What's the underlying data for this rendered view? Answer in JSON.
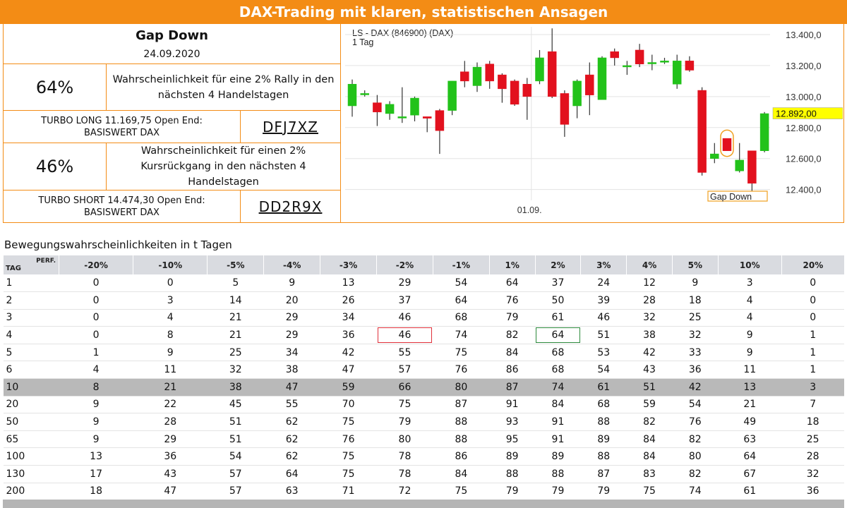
{
  "banner": "DAX-Trading mit klaren, statistischen Ansagen",
  "signal": {
    "title": "Gap Down",
    "date": "24.09.2020"
  },
  "rally": {
    "pct": "64%",
    "text": "Wahrscheinlichkeit für eine 2% Rally in den nächsten 4 Handelstagen"
  },
  "turbo_long": {
    "desc_line1": "TURBO LONG 11.169,75 Open End:",
    "desc_line2": "BASISWERT DAX",
    "code": "DFJ7XZ"
  },
  "decline": {
    "pct": "46%",
    "text": "Wahrscheinlichkeit für einen 2% Kursrückgang in den nächsten 4 Handelstagen"
  },
  "turbo_short": {
    "desc_line1": "TURBO SHORT 14.474,30 Open End:",
    "desc_line2": "BASISWERT DAX",
    "code": "DD2R9X"
  },
  "chart_data": {
    "type": "candlestick",
    "title": "LS - DAX (846900) (DAX)",
    "subtitle": "1 Tag",
    "ylim": [
      12330,
      13450
    ],
    "yticks": [
      "13.400,0",
      "13.200,0",
      "13.000,0",
      "12.800,0",
      "12.600,0",
      "12.400,0"
    ],
    "ytick_values": [
      13400,
      13200,
      13000,
      12800,
      12600,
      12400
    ],
    "x_label": "01.09.",
    "x_label_index": 14,
    "last_price_label": "12.892,00",
    "last_price": 12892,
    "annotation": "Gap Down",
    "annotation_index": 30,
    "colors": {
      "up": "#22c21a",
      "down": "#e2111e",
      "wick": "#333333",
      "label_bg": "#ffff00",
      "annotation": "#f0a020"
    },
    "candles": [
      {
        "o": 12940,
        "h": 13110,
        "l": 12870,
        "c": 13080
      },
      {
        "o": 13020,
        "h": 13040,
        "l": 13000,
        "c": 13020
      },
      {
        "o": 12960,
        "h": 13010,
        "l": 12810,
        "c": 12900
      },
      {
        "o": 12890,
        "h": 12970,
        "l": 12850,
        "c": 12950
      },
      {
        "o": 12870,
        "h": 13060,
        "l": 12830,
        "c": 12870
      },
      {
        "o": 12880,
        "h": 13000,
        "l": 12840,
        "c": 12990
      },
      {
        "o": 12870,
        "h": 12870,
        "l": 12770,
        "c": 12860
      },
      {
        "o": 12910,
        "h": 12920,
        "l": 12630,
        "c": 12780
      },
      {
        "o": 12910,
        "h": 13100,
        "l": 12880,
        "c": 13100
      },
      {
        "o": 13160,
        "h": 13230,
        "l": 13060,
        "c": 13100
      },
      {
        "o": 13070,
        "h": 13220,
        "l": 13030,
        "c": 13190
      },
      {
        "o": 13210,
        "h": 13230,
        "l": 13050,
        "c": 13100
      },
      {
        "o": 13140,
        "h": 13150,
        "l": 12960,
        "c": 13050
      },
      {
        "o": 13100,
        "h": 13110,
        "l": 12940,
        "c": 12950
      },
      {
        "o": 13080,
        "h": 13120,
        "l": 12850,
        "c": 13000
      },
      {
        "o": 13100,
        "h": 13300,
        "l": 13080,
        "c": 13250
      },
      {
        "o": 13290,
        "h": 13440,
        "l": 12990,
        "c": 13000
      },
      {
        "o": 13020,
        "h": 13040,
        "l": 12740,
        "c": 12820
      },
      {
        "o": 12940,
        "h": 13110,
        "l": 12860,
        "c": 13100
      },
      {
        "o": 13140,
        "h": 13220,
        "l": 12880,
        "c": 13010
      },
      {
        "o": 12980,
        "h": 13260,
        "l": 12980,
        "c": 13250
      },
      {
        "o": 13290,
        "h": 13310,
        "l": 13200,
        "c": 13250
      },
      {
        "o": 13200,
        "h": 13230,
        "l": 13140,
        "c": 13200
      },
      {
        "o": 13300,
        "h": 13340,
        "l": 13190,
        "c": 13210
      },
      {
        "o": 13220,
        "h": 13270,
        "l": 13170,
        "c": 13220
      },
      {
        "o": 13230,
        "h": 13250,
        "l": 13210,
        "c": 13230
      },
      {
        "o": 13080,
        "h": 13270,
        "l": 13050,
        "c": 13230
      },
      {
        "o": 13230,
        "h": 13260,
        "l": 13160,
        "c": 13170
      },
      {
        "o": 13040,
        "h": 13060,
        "l": 12490,
        "c": 12510
      },
      {
        "o": 12600,
        "h": 12700,
        "l": 12570,
        "c": 12630
      },
      {
        "o": 12730,
        "h": 12720,
        "l": 12650,
        "c": 12650
      },
      {
        "o": 12520,
        "h": 12700,
        "l": 12510,
        "c": 12590
      },
      {
        "o": 12650,
        "h": 12640,
        "l": 12390,
        "c": 12440
      },
      {
        "o": 12650,
        "h": 12900,
        "l": 12640,
        "c": 12890
      }
    ]
  },
  "table": {
    "title": "Bewegungswahrscheinlichkeiten in t Tagen",
    "corner_perf": "PERF.",
    "corner_tag": "TAG",
    "headers": [
      "-20%",
      "-10%",
      "-5%",
      "-4%",
      "-3%",
      "-2%",
      "-1%",
      "1%",
      "2%",
      "3%",
      "4%",
      "5%",
      "10%",
      "20%"
    ],
    "rows": [
      [
        "1",
        "0",
        "0",
        "5",
        "9",
        "13",
        "29",
        "54",
        "64",
        "37",
        "24",
        "12",
        "9",
        "3",
        "0"
      ],
      [
        "2",
        "0",
        "3",
        "14",
        "20",
        "26",
        "37",
        "64",
        "76",
        "50",
        "39",
        "28",
        "18",
        "4",
        "0"
      ],
      [
        "3",
        "0",
        "4",
        "21",
        "29",
        "34",
        "46",
        "68",
        "79",
        "61",
        "46",
        "32",
        "25",
        "4",
        "0"
      ],
      [
        "4",
        "0",
        "8",
        "21",
        "29",
        "36",
        "46",
        "74",
        "82",
        "64",
        "51",
        "38",
        "32",
        "9",
        "1"
      ],
      [
        "5",
        "1",
        "9",
        "25",
        "34",
        "42",
        "55",
        "75",
        "84",
        "68",
        "53",
        "42",
        "33",
        "9",
        "1"
      ],
      [
        "6",
        "4",
        "11",
        "32",
        "38",
        "47",
        "57",
        "76",
        "86",
        "68",
        "54",
        "43",
        "36",
        "11",
        "1"
      ],
      [
        "10",
        "8",
        "21",
        "38",
        "47",
        "59",
        "66",
        "80",
        "87",
        "74",
        "61",
        "51",
        "42",
        "13",
        "3"
      ],
      [
        "20",
        "9",
        "22",
        "45",
        "55",
        "70",
        "75",
        "87",
        "91",
        "84",
        "68",
        "59",
        "54",
        "21",
        "7"
      ],
      [
        "50",
        "9",
        "28",
        "51",
        "62",
        "75",
        "79",
        "88",
        "93",
        "91",
        "88",
        "82",
        "76",
        "49",
        "18"
      ],
      [
        "65",
        "9",
        "29",
        "51",
        "62",
        "76",
        "80",
        "88",
        "95",
        "91",
        "89",
        "84",
        "82",
        "63",
        "25"
      ],
      [
        "100",
        "13",
        "36",
        "54",
        "62",
        "75",
        "78",
        "86",
        "89",
        "89",
        "88",
        "84",
        "80",
        "64",
        "28"
      ],
      [
        "130",
        "17",
        "43",
        "57",
        "64",
        "75",
        "78",
        "84",
        "88",
        "88",
        "87",
        "83",
        "82",
        "67",
        "32"
      ],
      [
        "200",
        "18",
        "47",
        "57",
        "63",
        "71",
        "72",
        "75",
        "79",
        "79",
        "79",
        "75",
        "74",
        "61",
        "36"
      ]
    ],
    "highlight_row": 6,
    "marked_cells": [
      {
        "row": 3,
        "col": 6,
        "color": "red"
      },
      {
        "row": 3,
        "col": 9,
        "color": "green"
      }
    ]
  }
}
